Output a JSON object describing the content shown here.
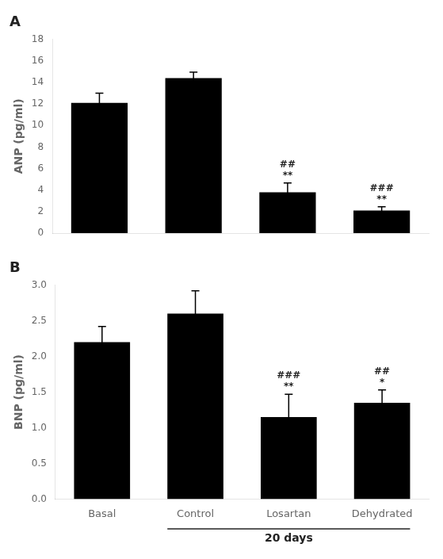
{
  "chart_data": [
    {
      "type": "bar",
      "title": "A",
      "categories": [
        "Basal",
        "Control",
        "Losartan",
        "Dehydrated"
      ],
      "values": [
        12.1,
        14.4,
        3.8,
        2.1
      ],
      "errors": [
        0.9,
        0.55,
        0.85,
        0.35
      ],
      "color": "#000000",
      "y_label": "ANP (pg/ml)",
      "ylim": [
        0,
        18
      ],
      "yticks": [
        0,
        2,
        4,
        6,
        8,
        10,
        12,
        14,
        16,
        18
      ],
      "grid": false,
      "tick_labels": "y",
      "annotations": [
        {
          "category": "Losartan",
          "text": "**"
        },
        {
          "category": "Losartan",
          "text": "##"
        },
        {
          "category": "Dehydrated",
          "text": "**"
        },
        {
          "category": "Dehydrated",
          "text": "###"
        }
      ]
    },
    {
      "type": "bar",
      "title": "B",
      "categories": [
        "Basal",
        "Control",
        "Losartan",
        "Dehydrated"
      ],
      "values": [
        2.2,
        2.6,
        1.15,
        1.35
      ],
      "errors": [
        0.22,
        0.32,
        0.32,
        0.18
      ],
      "color": "#000000",
      "y_label": "BNP (pg/ml)",
      "ylim": [
        0,
        3
      ],
      "yticks": [
        {
          "value": 0,
          "label": "0.0"
        },
        0.5,
        {
          "value": 1.0,
          "label": "1.0"
        },
        1.5,
        {
          "value": 2.0,
          "label": "2.0"
        },
        2.5,
        {
          "value": 3.0,
          "label": "3.0"
        }
      ],
      "grid": false,
      "annotations": [
        {
          "category": "Losartan",
          "text": "**"
        },
        {
          "category": "Losartan",
          "text": "###"
        },
        {
          "category": "Dehydrated",
          "text": "*"
        },
        {
          "category": "Dehydrated",
          "text": "##"
        },
        {
          "text": "20 days",
          "from": "Control",
          "to": "Dehydrated"
        }
      ]
    }
  ]
}
